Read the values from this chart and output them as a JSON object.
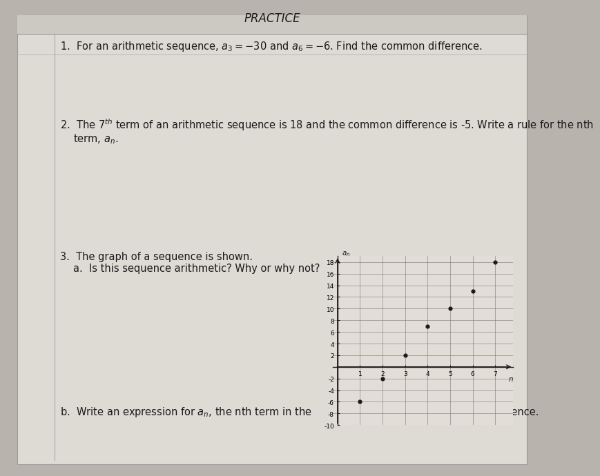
{
  "title": "PRACTICE",
  "bg_color": "#b8b3ac",
  "paper_color": "#dedad4",
  "paper_inner_color": "#e2ddd7",
  "line1_text": "1.  For an arithmetic sequence, $a_3 = -30$ and $a_6 = -6$. Find the common difference.",
  "line2_text": "2.  The 7$^{th}$ term of an arithmetic sequence is 18 and the common difference is -5. Write a rule for the nth",
  "line2b_text": "    term, $a_n$.",
  "line3_text": "3.  The graph of a sequence is shown.",
  "line3a_text": "    a.  Is this sequence arithmetic? Why or why not?",
  "line3b_text": "b.  Write an expression for $a_n$, the nth term in the",
  "end_text": "sequence.",
  "graph_points_x": [
    1,
    2,
    3,
    4,
    5,
    6,
    7
  ],
  "graph_points_y": [
    -6,
    -2,
    2,
    7,
    10,
    13,
    18
  ],
  "graph_xlim": [
    -0.2,
    7.8
  ],
  "graph_ylim": [
    -10,
    19
  ],
  "graph_xticks": [
    1,
    2,
    3,
    4,
    5,
    6,
    7
  ],
  "graph_yticks": [
    -10,
    -8,
    -6,
    -4,
    -2,
    2,
    4,
    6,
    8,
    10,
    12,
    14,
    16,
    18
  ],
  "graph_xlabel": "n",
  "graph_ylabel": "$a_n$",
  "point_color": "#1a1a1a",
  "axis_color": "#1a1a1a",
  "grid_color": "#777777",
  "text_color": "#1a1a1a",
  "font_size_main": 10.5,
  "font_size_title": 12,
  "font_size_graph": 6.5
}
